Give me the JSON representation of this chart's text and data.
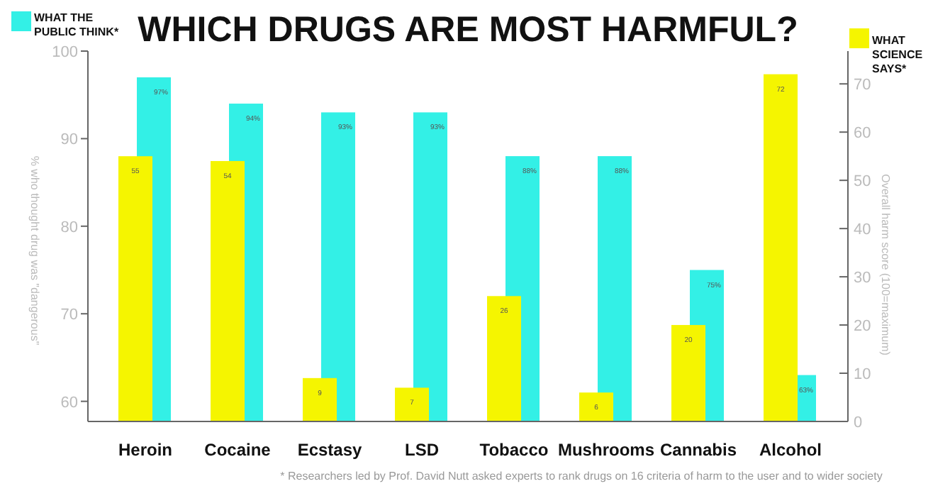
{
  "chart_data": {
    "type": "bar",
    "title": "WHICH DRUGS ARE MOST HARMFUL?",
    "categories": [
      "Heroin",
      "Cocaine",
      "Ecstasy",
      "LSD",
      "Tobacco",
      "Mushrooms",
      "Cannabis",
      "Alcohol"
    ],
    "series": [
      {
        "name": "WHAT THE PUBLIC THINK*",
        "color": "#33f0e6",
        "values": [
          97,
          94,
          93,
          93,
          88,
          88,
          75,
          63
        ],
        "value_labels": [
          "97%",
          "94%",
          "93%",
          "93%",
          "88%",
          "88%",
          "75%",
          "63%"
        ]
      },
      {
        "name": "WHAT SCIENCE SAYS*",
        "color": "#f5f500",
        "axis": "y2",
        "values": [
          55,
          54,
          9,
          7,
          26,
          6,
          20,
          72
        ],
        "value_labels": [
          "55",
          "54",
          "9",
          "7",
          "26",
          "6",
          "20",
          "72"
        ]
      }
    ],
    "ylabel": "% who thought drug was \"dangerous\"",
    "y2label": "Overall harm score (100=maximum)",
    "ylim": [
      57.7,
      100
    ],
    "yticks": [
      60,
      70,
      80,
      90,
      100
    ],
    "y2lim": [
      0,
      76.8
    ],
    "y2ticks": [
      0,
      10,
      20,
      30,
      40,
      50,
      60,
      70
    ],
    "legend": "top",
    "grid": false,
    "annotations": [
      "* Researchers led by Prof. David Nutt asked experts to rank drugs on 16 criteria of harm to the user and to wider society"
    ]
  }
}
